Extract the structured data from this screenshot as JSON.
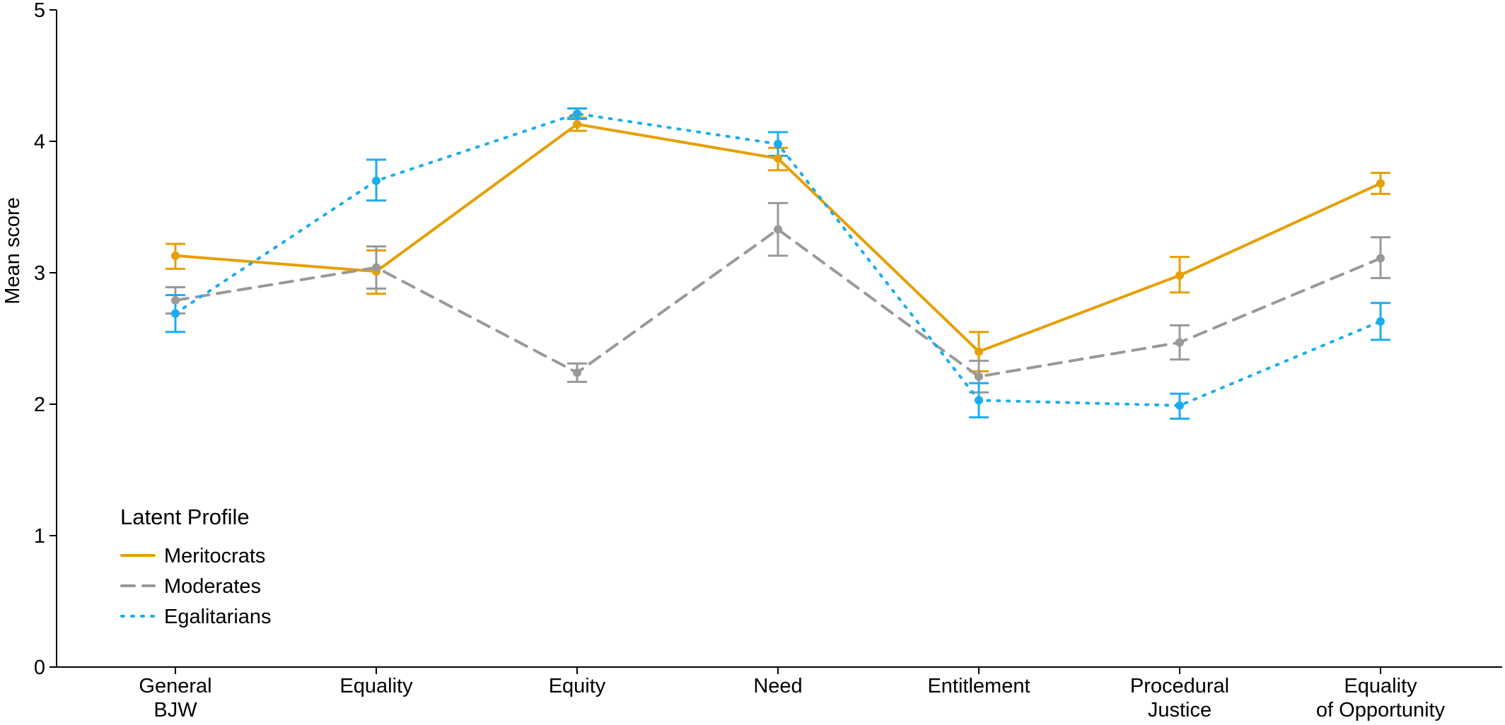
{
  "chart_data": {
    "type": "line",
    "title": "",
    "xlabel": "",
    "ylabel": "Mean score",
    "ylim": [
      0,
      5
    ],
    "yticks": [
      0,
      1,
      2,
      3,
      4,
      5
    ],
    "grid": false,
    "categories": [
      [
        "General",
        "BJW"
      ],
      [
        "Equality"
      ],
      [
        "Equity"
      ],
      [
        "Need"
      ],
      [
        "Entitlement"
      ],
      [
        "Procedural",
        "Justice"
      ],
      [
        "Equality",
        "of Opportunity"
      ]
    ],
    "legend": {
      "title": "Latent Profile",
      "placement": "bottom-left"
    },
    "series": [
      {
        "name": "Meritocrats",
        "color": "#E69F00",
        "dash": "solid",
        "values": [
          3.13,
          3.01,
          4.13,
          3.87,
          2.4,
          2.98,
          3.68
        ],
        "ci_low": [
          3.03,
          2.84,
          4.08,
          3.78,
          2.25,
          2.85,
          3.6
        ],
        "ci_high": [
          3.22,
          3.17,
          4.18,
          3.95,
          2.55,
          3.12,
          3.76
        ]
      },
      {
        "name": "Moderates",
        "color": "#999999",
        "dash": "dashed",
        "values": [
          2.79,
          3.04,
          2.24,
          3.33,
          2.21,
          2.47,
          3.11
        ],
        "ci_low": [
          2.69,
          2.88,
          2.17,
          3.13,
          2.09,
          2.34,
          2.96
        ],
        "ci_high": [
          2.89,
          3.2,
          2.31,
          3.53,
          2.33,
          2.6,
          3.27
        ]
      },
      {
        "name": "Egalitarians",
        "color": "#1AADEE",
        "dash": "dotted",
        "values": [
          2.69,
          3.7,
          4.21,
          3.98,
          2.03,
          1.99,
          2.63
        ],
        "ci_low": [
          2.55,
          3.55,
          4.17,
          3.89,
          1.9,
          1.89,
          2.49
        ],
        "ci_high": [
          2.83,
          3.86,
          4.25,
          4.07,
          2.16,
          2.08,
          2.77
        ]
      }
    ]
  }
}
